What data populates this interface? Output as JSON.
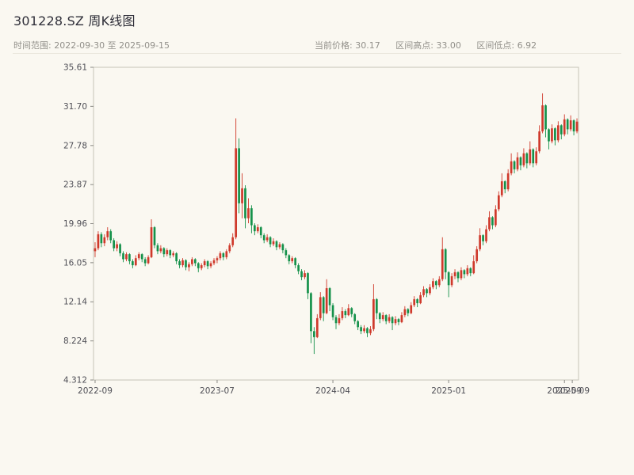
{
  "header": {
    "title": "301228.SZ 周K线图",
    "date_range_label": "时间范围: 2022-09-30 至 2025-09-15",
    "stats": {
      "price": "当前价格: 30.17",
      "high": "区间高点: 33.00",
      "low": "区间低点: 6.92"
    }
  },
  "chart_data": {
    "type": "candlestick",
    "title": "301228.SZ 周K线图",
    "interval": "weekly",
    "date_start": "2022-09-30",
    "date_end": "2025-09-15",
    "current_price": 30.17,
    "range_high": 33.0,
    "range_low": 6.92,
    "up_color": "#cf392b",
    "down_color": "#14914a",
    "ylim": [
      4.312,
      35.61
    ],
    "y_ticks": [
      "35.61",
      "31.70",
      "27.78",
      "23.87",
      "19.96",
      "16.05",
      "12.14",
      "8.224",
      "4.312"
    ],
    "y_tick_values": [
      35.61,
      31.7,
      27.78,
      23.87,
      19.96,
      16.05,
      12.14,
      8.224,
      4.312
    ],
    "x_ticks": [
      {
        "index": 0,
        "label": "2022-09"
      },
      {
        "index": 39,
        "label": "2023-07"
      },
      {
        "index": 76,
        "label": "2024-04"
      },
      {
        "index": 113,
        "label": "2025-01"
      },
      {
        "index": 150,
        "label": "2025-09"
      },
      {
        "index": 152.5,
        "label": "2025-09"
      }
    ],
    "grid": false,
    "legend": false,
    "ohlc": [
      [
        17.2,
        18.1,
        16.6,
        17.5
      ],
      [
        17.5,
        19.2,
        17.3,
        18.9
      ],
      [
        18.9,
        19.1,
        17.6,
        18.0
      ],
      [
        18.0,
        18.9,
        17.7,
        18.6
      ],
      [
        18.6,
        19.6,
        18.3,
        19.2
      ],
      [
        19.2,
        19.4,
        18.0,
        18.3
      ],
      [
        18.3,
        18.5,
        17.2,
        17.5
      ],
      [
        17.5,
        18.2,
        17.2,
        17.9
      ],
      [
        17.9,
        18.0,
        16.7,
        17.0
      ],
      [
        17.0,
        17.2,
        16.1,
        16.4
      ],
      [
        16.4,
        17.1,
        16.2,
        16.9
      ],
      [
        16.9,
        17.0,
        15.9,
        16.2
      ],
      [
        16.2,
        16.4,
        15.5,
        15.8
      ],
      [
        15.8,
        16.8,
        15.7,
        16.5
      ],
      [
        16.5,
        17.1,
        16.3,
        16.9
      ],
      [
        16.9,
        17.0,
        16.1,
        16.4
      ],
      [
        16.4,
        16.6,
        15.7,
        16.0
      ],
      [
        16.0,
        16.8,
        15.9,
        16.6
      ],
      [
        16.6,
        20.4,
        16.5,
        19.6
      ],
      [
        19.6,
        19.7,
        17.5,
        17.8
      ],
      [
        17.8,
        18.0,
        16.9,
        17.2
      ],
      [
        17.2,
        17.8,
        17.0,
        17.5
      ],
      [
        17.5,
        17.6,
        16.6,
        16.9
      ],
      [
        16.9,
        17.5,
        16.7,
        17.3
      ],
      [
        17.3,
        17.4,
        16.5,
        16.8
      ],
      [
        16.8,
        17.2,
        16.6,
        17.0
      ],
      [
        17.0,
        17.1,
        15.9,
        16.2
      ],
      [
        16.2,
        16.4,
        15.5,
        15.8
      ],
      [
        15.8,
        16.5,
        15.6,
        16.3
      ],
      [
        16.3,
        16.4,
        15.3,
        15.6
      ],
      [
        15.6,
        16.1,
        15.2,
        15.9
      ],
      [
        15.9,
        16.6,
        15.7,
        16.4
      ],
      [
        16.4,
        16.5,
        15.7,
        16.0
      ],
      [
        16.0,
        16.1,
        15.1,
        15.5
      ],
      [
        15.5,
        16.0,
        15.3,
        15.8
      ],
      [
        15.8,
        16.4,
        15.6,
        16.2
      ],
      [
        16.2,
        16.3,
        15.4,
        15.7
      ],
      [
        15.7,
        16.2,
        15.5,
        16.0
      ],
      [
        16.0,
        16.5,
        15.8,
        16.3
      ],
      [
        16.3,
        16.7,
        16.0,
        16.5
      ],
      [
        16.5,
        17.2,
        16.3,
        17.0
      ],
      [
        17.0,
        17.1,
        16.3,
        16.6
      ],
      [
        16.6,
        17.4,
        16.4,
        17.2
      ],
      [
        17.2,
        18.0,
        17.0,
        17.8
      ],
      [
        17.8,
        19.0,
        17.6,
        18.6
      ],
      [
        18.6,
        30.5,
        18.4,
        27.5
      ],
      [
        27.5,
        28.5,
        21.0,
        22.0
      ],
      [
        22.0,
        25.0,
        20.5,
        23.5
      ],
      [
        23.5,
        23.8,
        19.5,
        20.5
      ],
      [
        20.5,
        22.5,
        20.0,
        21.5
      ],
      [
        21.5,
        21.8,
        19.0,
        19.8
      ],
      [
        19.8,
        20.0,
        18.8,
        19.2
      ],
      [
        19.2,
        19.9,
        19.0,
        19.6
      ],
      [
        19.6,
        19.7,
        18.5,
        18.8
      ],
      [
        18.8,
        19.0,
        18.0,
        18.3
      ],
      [
        18.3,
        18.9,
        18.1,
        18.6
      ],
      [
        18.6,
        18.7,
        17.6,
        17.9
      ],
      [
        17.9,
        18.5,
        17.7,
        18.2
      ],
      [
        18.2,
        18.3,
        17.3,
        17.6
      ],
      [
        17.6,
        18.1,
        17.4,
        17.9
      ],
      [
        17.9,
        18.0,
        17.0,
        17.3
      ],
      [
        17.3,
        17.5,
        16.5,
        16.8
      ],
      [
        16.8,
        16.9,
        15.9,
        16.2
      ],
      [
        16.2,
        16.7,
        16.0,
        16.5
      ],
      [
        16.5,
        16.6,
        15.5,
        15.8
      ],
      [
        15.8,
        16.0,
        14.9,
        15.2
      ],
      [
        15.2,
        15.4,
        14.3,
        14.6
      ],
      [
        14.6,
        15.3,
        14.4,
        15.0
      ],
      [
        15.0,
        15.1,
        12.4,
        13.0
      ],
      [
        13.0,
        13.1,
        8.0,
        9.2
      ],
      [
        9.2,
        9.6,
        6.92,
        8.6
      ],
      [
        8.6,
        10.9,
        8.5,
        10.5
      ],
      [
        10.5,
        13.1,
        10.3,
        12.6
      ],
      [
        12.6,
        12.7,
        10.2,
        11.0
      ],
      [
        11.0,
        14.4,
        10.9,
        13.5
      ],
      [
        13.5,
        13.6,
        11.2,
        11.8
      ],
      [
        11.8,
        12.0,
        10.3,
        10.6
      ],
      [
        10.6,
        10.8,
        9.4,
        10.0
      ],
      [
        10.0,
        10.9,
        9.8,
        10.5
      ],
      [
        10.5,
        11.6,
        10.3,
        11.2
      ],
      [
        11.2,
        11.4,
        10.5,
        10.8
      ],
      [
        10.8,
        11.9,
        10.7,
        11.5
      ],
      [
        11.5,
        11.6,
        10.6,
        10.9
      ],
      [
        10.9,
        11.0,
        9.9,
        10.2
      ],
      [
        10.2,
        10.3,
        9.3,
        9.6
      ],
      [
        9.6,
        9.8,
        8.9,
        9.2
      ],
      [
        9.2,
        9.8,
        9.0,
        9.5
      ],
      [
        9.5,
        9.6,
        8.6,
        9.0
      ],
      [
        9.0,
        9.7,
        8.8,
        9.4
      ],
      [
        9.4,
        13.9,
        9.2,
        12.4
      ],
      [
        12.4,
        12.5,
        10.4,
        11.0
      ],
      [
        11.0,
        11.1,
        10.0,
        10.4
      ],
      [
        10.4,
        11.1,
        10.2,
        10.8
      ],
      [
        10.8,
        10.9,
        9.9,
        10.2
      ],
      [
        10.2,
        10.9,
        10.0,
        10.6
      ],
      [
        10.6,
        10.7,
        9.3,
        10.0
      ],
      [
        10.0,
        10.7,
        9.8,
        10.4
      ],
      [
        10.4,
        10.5,
        9.8,
        10.1
      ],
      [
        10.1,
        11.1,
        10.0,
        10.8
      ],
      [
        10.8,
        11.7,
        10.6,
        11.4
      ],
      [
        11.4,
        11.5,
        10.7,
        11.0
      ],
      [
        11.0,
        12.1,
        10.9,
        11.8
      ],
      [
        11.8,
        12.7,
        11.6,
        12.4
      ],
      [
        12.4,
        12.5,
        11.6,
        12.0
      ],
      [
        12.0,
        13.1,
        11.9,
        12.8
      ],
      [
        12.8,
        13.7,
        12.6,
        13.4
      ],
      [
        13.4,
        13.5,
        12.6,
        13.0
      ],
      [
        13.0,
        13.9,
        12.8,
        13.6
      ],
      [
        13.6,
        14.5,
        13.4,
        14.2
      ],
      [
        14.2,
        14.3,
        13.4,
        13.8
      ],
      [
        13.8,
        14.7,
        13.6,
        14.4
      ],
      [
        14.4,
        18.6,
        14.2,
        17.4
      ],
      [
        17.4,
        17.5,
        14.4,
        15.1
      ],
      [
        15.1,
        15.2,
        12.6,
        13.8
      ],
      [
        13.8,
        15.0,
        13.6,
        14.7
      ],
      [
        14.7,
        15.4,
        14.4,
        15.1
      ],
      [
        15.1,
        15.2,
        14.1,
        14.5
      ],
      [
        14.5,
        15.6,
        14.3,
        15.3
      ],
      [
        15.3,
        15.4,
        14.5,
        14.9
      ],
      [
        14.9,
        15.8,
        14.7,
        15.5
      ],
      [
        15.5,
        15.6,
        14.7,
        15.0
      ],
      [
        15.0,
        16.8,
        14.9,
        16.2
      ],
      [
        16.2,
        17.7,
        16.0,
        17.4
      ],
      [
        17.4,
        19.5,
        17.2,
        18.8
      ],
      [
        18.8,
        18.9,
        17.8,
        18.2
      ],
      [
        18.2,
        19.8,
        18.0,
        19.4
      ],
      [
        19.4,
        21.2,
        19.2,
        20.6
      ],
      [
        20.6,
        20.7,
        19.4,
        19.8
      ],
      [
        19.8,
        21.8,
        19.6,
        21.4
      ],
      [
        21.4,
        23.2,
        21.2,
        22.8
      ],
      [
        22.8,
        25.0,
        22.6,
        24.2
      ],
      [
        24.2,
        24.3,
        23.0,
        23.4
      ],
      [
        23.4,
        25.4,
        23.2,
        25.0
      ],
      [
        25.0,
        27.0,
        24.8,
        26.2
      ],
      [
        26.2,
        26.3,
        25.0,
        25.4
      ],
      [
        25.4,
        27.1,
        25.2,
        26.6
      ],
      [
        26.6,
        26.7,
        25.3,
        25.8
      ],
      [
        25.8,
        27.5,
        25.6,
        27.0
      ],
      [
        27.0,
        27.1,
        25.5,
        26.0
      ],
      [
        26.0,
        28.2,
        25.8,
        27.4
      ],
      [
        27.4,
        27.5,
        25.6,
        26.0
      ],
      [
        26.0,
        27.6,
        25.8,
        27.2
      ],
      [
        27.2,
        29.8,
        27.0,
        29.2
      ],
      [
        29.2,
        33.0,
        29.0,
        31.8
      ],
      [
        31.8,
        31.9,
        28.6,
        29.4
      ],
      [
        29.4,
        29.5,
        27.4,
        28.2
      ],
      [
        28.2,
        29.9,
        28.0,
        29.5
      ],
      [
        29.5,
        29.6,
        27.8,
        28.3
      ],
      [
        28.3,
        30.2,
        28.1,
        29.8
      ],
      [
        29.8,
        29.9,
        28.4,
        28.9
      ],
      [
        28.9,
        30.9,
        28.7,
        30.4
      ],
      [
        30.4,
        30.5,
        28.9,
        29.4
      ],
      [
        29.4,
        30.8,
        29.2,
        30.3
      ],
      [
        30.3,
        30.4,
        28.8,
        29.2
      ],
      [
        29.2,
        30.5,
        29.0,
        30.17
      ]
    ]
  }
}
